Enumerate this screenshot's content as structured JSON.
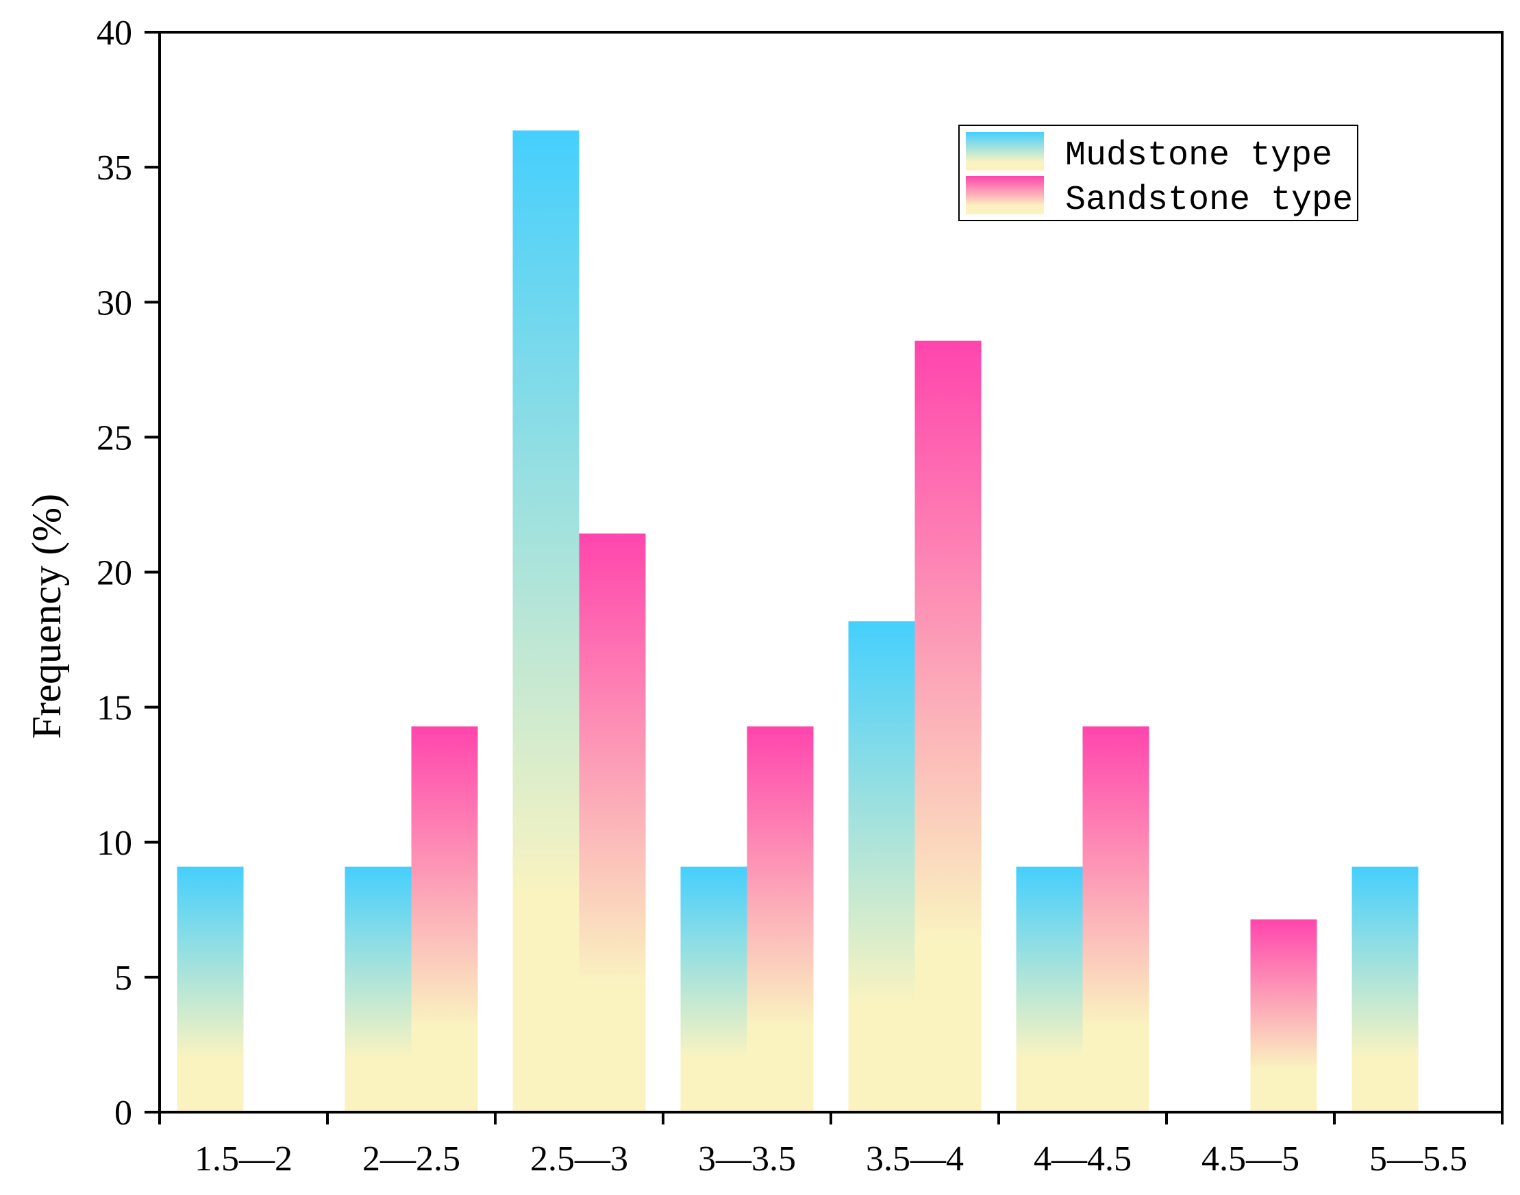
{
  "chart_data": {
    "type": "bar",
    "title": "",
    "xlabel": "",
    "ylabel": "Frequency (%)",
    "ylim": [
      0,
      40
    ],
    "yticks": [
      0,
      5,
      10,
      15,
      20,
      25,
      30,
      35,
      40
    ],
    "categories": [
      "1.5—2",
      "2—2.5",
      "2.5—3",
      "3—3.5",
      "3.5—4",
      "4—4.5",
      "4.5—5",
      "5—5.5"
    ],
    "series": [
      {
        "name": "Mudstone type",
        "values": [
          9.09,
          9.09,
          36.36,
          9.09,
          18.18,
          9.09,
          0,
          9.09
        ],
        "color_top": "#45cffd",
        "color_bottom": "#faf3c0"
      },
      {
        "name": "Sandstone type",
        "values": [
          0,
          14.29,
          21.43,
          14.29,
          28.57,
          14.29,
          7.14,
          0
        ],
        "color_top": "#ff45ad",
        "color_bottom": "#faf3c0"
      }
    ],
    "legend_position": "top-right",
    "grid": false
  }
}
